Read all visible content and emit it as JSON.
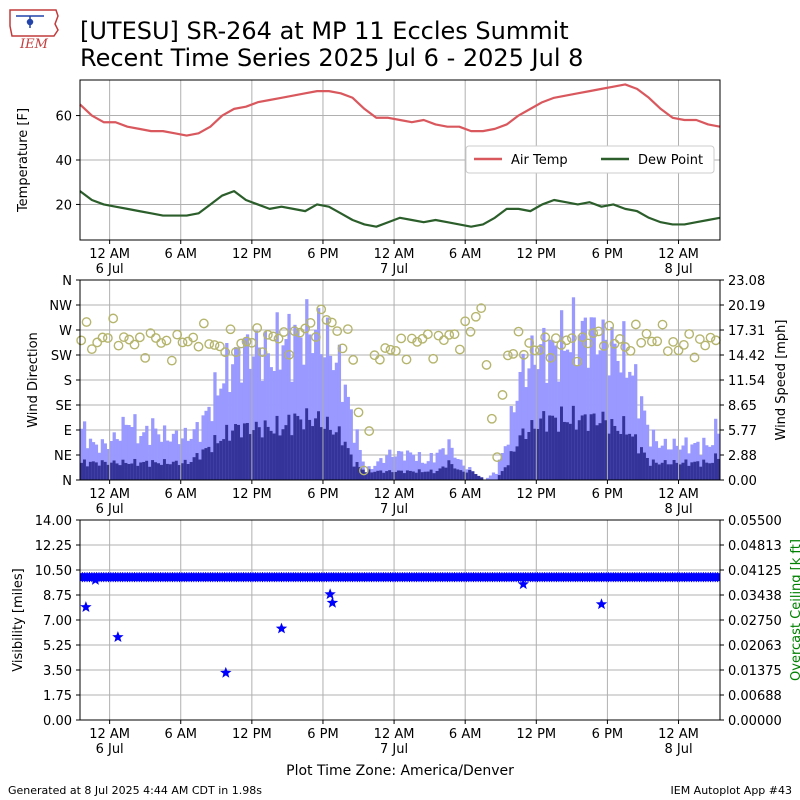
{
  "header": {
    "title_line1": "[UTESU] SR-264 at MP 11 Eccles Summit",
    "title_line2": "Recent Time Series 2025 Jul 6 - 2025 Jul 8",
    "logo_text": "IEM"
  },
  "footer": {
    "left": "Generated at 8 Jul 2025 4:44 AM CDT in 1.98s",
    "right": "IEM Autoplot App #43"
  },
  "x_axis_label": "Plot Time Zone: America/Denver",
  "colors": {
    "air_temp": "#d9585e",
    "dew_point": "#2b5e2b",
    "wind_gust_bar": "#9999ff",
    "wind_speed_bar": "#333399",
    "wind_dir_marker": "#b5b56e",
    "visibility": "#0000ff",
    "ceiling_label": "#008000",
    "grid": "#b0b0b0"
  },
  "chart_data": [
    {
      "type": "line",
      "ylabel": "Temperature [F]",
      "x_range_hours": [
        -2.5,
        51.5
      ],
      "ylim": [
        4,
        76
      ],
      "yticks": [
        20,
        40,
        60
      ],
      "grid": true,
      "legend": {
        "placement": "right",
        "entries": [
          "Air Temp",
          "Dew Point"
        ]
      },
      "series": [
        {
          "name": "Air Temp",
          "x_hours": [
            -2.5,
            -1.5,
            -0.5,
            0.5,
            1.5,
            2.5,
            3.5,
            4.5,
            5.5,
            6.5,
            7.5,
            8.5,
            9.5,
            10.5,
            11.5,
            12.5,
            13.5,
            14.5,
            15.5,
            16.5,
            17.5,
            18.5,
            19.5,
            20.5,
            21.5,
            22.5,
            23.5,
            24.5,
            25.5,
            26.5,
            27.5,
            28.5,
            29.5,
            30.5,
            31.5,
            32.5,
            33.5,
            34.5,
            35.5,
            36.5,
            37.5,
            38.5,
            39.5,
            40.5,
            41.5,
            42.5,
            43.5,
            44.5,
            45.5,
            46.5,
            47.5,
            48.5,
            49.5,
            50.5,
            51.5
          ],
          "values": [
            65,
            60,
            57,
            57,
            55,
            54,
            53,
            53,
            52,
            51,
            52,
            55,
            60,
            63,
            64,
            66,
            67,
            68,
            69,
            70,
            71,
            71,
            70,
            68,
            63,
            59,
            59,
            58,
            57,
            58,
            56,
            55,
            55,
            53,
            53,
            54,
            56,
            60,
            63,
            66,
            68,
            69,
            70,
            71,
            72,
            73,
            74,
            72,
            68,
            63,
            59,
            58,
            58,
            56,
            55
          ]
        },
        {
          "name": "Dew Point",
          "x_hours": [
            -2.5,
            -1.5,
            -0.5,
            0.5,
            1.5,
            2.5,
            3.5,
            4.5,
            5.5,
            6.5,
            7.5,
            8.5,
            9.5,
            10.5,
            11.5,
            12.5,
            13.5,
            14.5,
            15.5,
            16.5,
            17.5,
            18.5,
            19.5,
            20.5,
            21.5,
            22.5,
            23.5,
            24.5,
            25.5,
            26.5,
            27.5,
            28.5,
            29.5,
            30.5,
            31.5,
            32.5,
            33.5,
            34.5,
            35.5,
            36.5,
            37.5,
            38.5,
            39.5,
            40.5,
            41.5,
            42.5,
            43.5,
            44.5,
            45.5,
            46.5,
            47.5,
            48.5,
            49.5,
            50.5,
            51.5
          ],
          "values": [
            26,
            22,
            20,
            19,
            18,
            17,
            16,
            15,
            15,
            15,
            16,
            20,
            24,
            26,
            22,
            20,
            18,
            19,
            18,
            17,
            20,
            19,
            16,
            13,
            11,
            10,
            12,
            14,
            13,
            12,
            13,
            12,
            11,
            10,
            11,
            14,
            18,
            18,
            17,
            20,
            22,
            21,
            20,
            21,
            19,
            20,
            18,
            17,
            14,
            12,
            11,
            11,
            12,
            13,
            14
          ]
        }
      ]
    },
    {
      "type": "bar",
      "ylabel": "Wind Direction",
      "y2label": "Wind Speed [mph]",
      "x_range_hours": [
        -2.5,
        51.5
      ],
      "direction_ticks": [
        "N",
        "NE",
        "E",
        "SE",
        "S",
        "SW",
        "W",
        "NW",
        "N"
      ],
      "speed_ticks": [
        "0.00",
        "2.88",
        "5.77",
        "8.65",
        "11.54",
        "14.42",
        "17.31",
        "20.19",
        "23.08"
      ],
      "speed_max": 23.08,
      "grid": true,
      "x_hours": [
        -2.5,
        -1.5,
        -0.5,
        0.5,
        1.5,
        2.5,
        3.5,
        4.5,
        5.5,
        6.5,
        7.5,
        8.5,
        9.5,
        10.5,
        11.5,
        12.5,
        13.5,
        14.5,
        15.5,
        16.5,
        17.5,
        18.5,
        19.5,
        20.5,
        21.5,
        22.5,
        23.5,
        24.5,
        25.5,
        26.5,
        27.5,
        28.5,
        29.5,
        30.5,
        31.5,
        32.5,
        33.5,
        34.5,
        35.5,
        36.5,
        37.5,
        38.5,
        39.5,
        40.5,
        41.5,
        42.5,
        43.5,
        44.5,
        45.5,
        46.5,
        47.5,
        48.5,
        49.5,
        50.5,
        51.5
      ],
      "series": [
        {
          "name": "gust",
          "values": [
            6,
            4,
            4,
            5,
            7,
            5,
            6,
            5,
            5,
            5,
            6,
            9,
            12,
            14,
            15,
            15,
            14,
            16,
            16,
            17,
            17,
            15,
            12,
            6,
            1,
            2,
            3,
            3,
            3,
            2,
            3,
            4,
            2,
            1,
            0,
            1,
            5,
            12,
            14,
            15,
            15,
            16,
            17,
            17,
            16,
            15,
            14,
            10,
            5,
            4,
            4,
            4,
            4,
            4,
            7
          ]
        },
        {
          "name": "speed",
          "values": [
            2,
            2,
            2,
            2,
            2,
            2,
            2,
            2,
            2,
            2,
            3,
            4,
            5,
            6,
            6,
            6,
            6,
            6,
            7,
            7,
            7,
            6,
            5,
            2,
            1,
            1,
            1,
            1,
            1,
            1,
            1,
            2,
            1,
            1,
            0,
            0,
            2,
            5,
            6,
            7,
            7,
            7,
            7,
            7,
            7,
            6,
            6,
            4,
            2,
            2,
            2,
            2,
            2,
            2,
            3
          ]
        },
        {
          "name": "direction",
          "values_deg": [
            265,
            250,
            255,
            270,
            250,
            240,
            255,
            245,
            240,
            250,
            260,
            250,
            240,
            245,
            250,
            250,
            260,
            250,
            255,
            270,
            285,
            290,
            260,
            235,
            10,
            230,
            240,
            230,
            250,
            250,
            245,
            255,
            260,
            270,
            320,
            5,
            230,
            240,
            245,
            230,
            250,
            245,
            240,
            250,
            270,
            250,
            245,
            255,
            260,
            255,
            245,
            240,
            245,
            250,
            235
          ]
        }
      ]
    },
    {
      "type": "scatter",
      "ylabel": "Visibility [miles]",
      "y2label": "Overcast Ceiling [k ft]",
      "x_range_hours": [
        -2.5,
        51.5
      ],
      "ylim": [
        0,
        14
      ],
      "yticks": [
        "0.00",
        "1.75",
        "3.50",
        "5.25",
        "7.00",
        "8.75",
        "10.50",
        "12.25",
        "14.00"
      ],
      "y2ticks": [
        "0.00000",
        "0.00688",
        "0.01375",
        "0.02063",
        "0.02750",
        "0.03438",
        "0.04125",
        "0.04813",
        "0.05500"
      ],
      "grid": true,
      "baseline_visibility": 10.0,
      "x_hours": [
        -2,
        -1.2,
        0.7,
        9.8,
        14.5,
        18.6,
        18.8,
        34.9,
        41.5
      ],
      "values": [
        7.9,
        9.8,
        5.8,
        3.3,
        6.4,
        8.8,
        8.2,
        9.5,
        8.1
      ]
    }
  ],
  "x_axis": {
    "ticks": [
      {
        "hours": 0,
        "line1": "12 AM",
        "line2": "6 Jul"
      },
      {
        "hours": 6,
        "line1": "6 AM",
        "line2": ""
      },
      {
        "hours": 12,
        "line1": "12 PM",
        "line2": ""
      },
      {
        "hours": 18,
        "line1": "6 PM",
        "line2": ""
      },
      {
        "hours": 24,
        "line1": "12 AM",
        "line2": "7 Jul"
      },
      {
        "hours": 30,
        "line1": "6 AM",
        "line2": ""
      },
      {
        "hours": 36,
        "line1": "12 PM",
        "line2": ""
      },
      {
        "hours": 42,
        "line1": "6 PM",
        "line2": ""
      },
      {
        "hours": 48,
        "line1": "12 AM",
        "line2": "8 Jul"
      }
    ]
  }
}
